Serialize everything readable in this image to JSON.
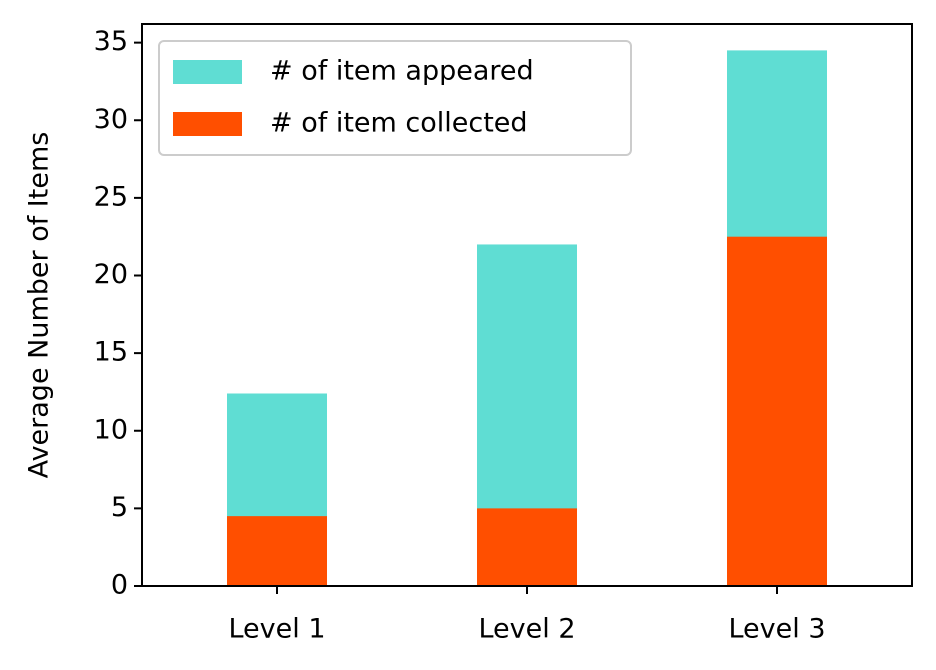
{
  "chart_data": {
    "type": "bar",
    "barmode": "overlay",
    "y_label": "Average Number of Items",
    "categories": [
      "Level 1",
      "Level 2",
      "Level 3"
    ],
    "series": [
      {
        "name": "# of item appeared",
        "color": "#5fddd3",
        "values": [
          12.4,
          22.0,
          34.5
        ]
      },
      {
        "name": "# of item collected",
        "color": "#ff4f00",
        "values": [
          4.5,
          5.0,
          22.5
        ]
      }
    ],
    "ylim": [
      0,
      36.2
    ],
    "yticks": [
      0,
      5,
      10,
      15,
      20,
      25,
      30,
      35
    ],
    "legend": "upper left"
  }
}
